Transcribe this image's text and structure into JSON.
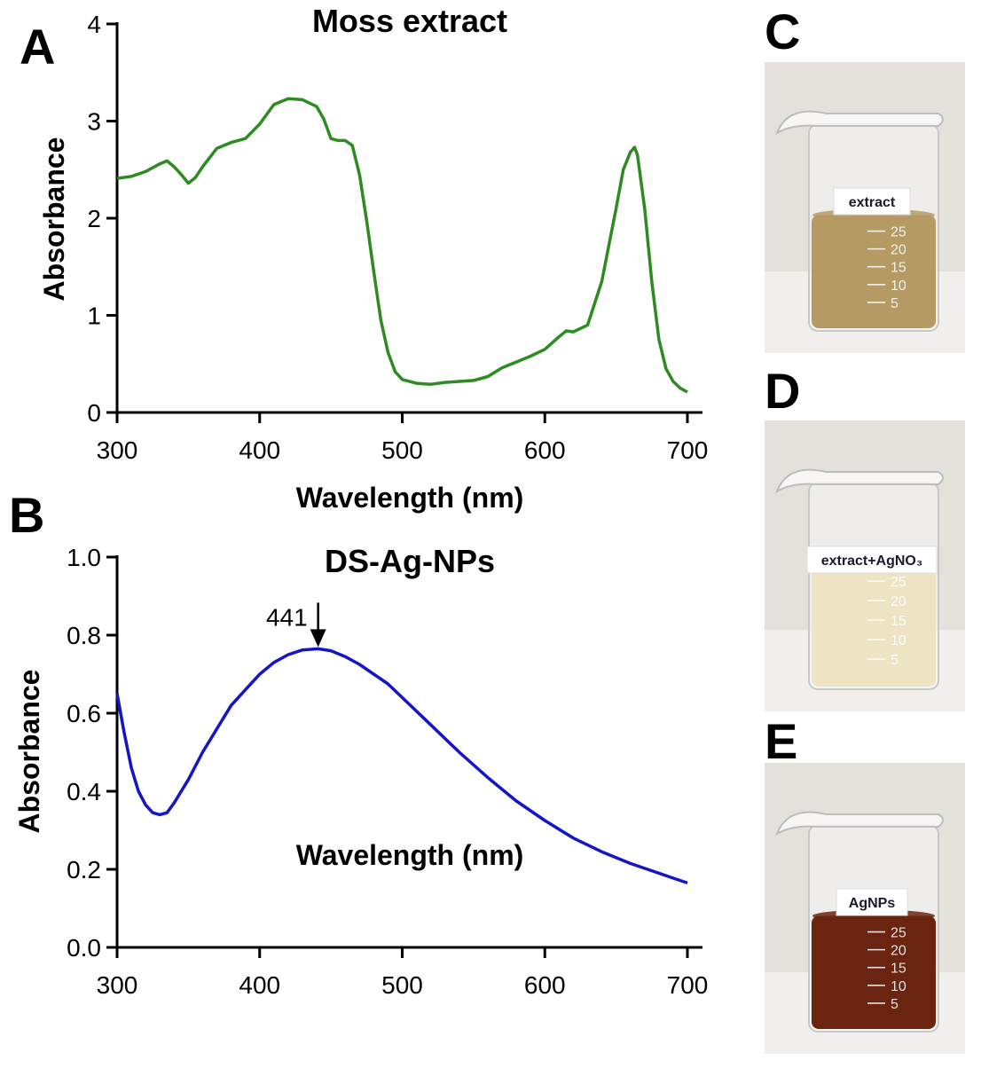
{
  "panels": {
    "a_letter": "A",
    "b_letter": "B",
    "c_letter": "C",
    "d_letter": "D",
    "e_letter": "E"
  },
  "photos": [
    {
      "label": "extract",
      "liquid_color": "#b59a63",
      "liquid_level": 0.56,
      "graduations": [
        "25",
        "20",
        "15",
        "10",
        "5"
      ]
    },
    {
      "label": "extract+AgNO₃",
      "liquid_color": "#eee3c2",
      "liquid_level": 0.6,
      "graduations": [
        "25",
        "20",
        "15",
        "10",
        "5"
      ]
    },
    {
      "label": "AgNPs",
      "liquid_color": "#6b2410",
      "liquid_level": 0.56,
      "graduations": [
        "25",
        "20",
        "15",
        "10",
        "5"
      ]
    }
  ],
  "chart_data": [
    {
      "id": "A",
      "type": "line",
      "title": "Moss extract",
      "xlabel": "Wavelength  (nm)",
      "ylabel": "Absorbance",
      "xlim": [
        300,
        700
      ],
      "ylim": [
        0,
        4
      ],
      "xticks": [
        "300",
        "400",
        "500",
        "600",
        "700"
      ],
      "yticks": [
        "0",
        "1",
        "2",
        "3",
        "4"
      ],
      "color": "#2e8b22",
      "x": [
        300,
        310,
        320,
        330,
        335,
        340,
        345,
        350,
        355,
        360,
        370,
        380,
        390,
        400,
        410,
        420,
        430,
        440,
        445,
        450,
        455,
        460,
        465,
        470,
        475,
        480,
        485,
        490,
        495,
        500,
        510,
        520,
        530,
        540,
        550,
        560,
        570,
        580,
        590,
        600,
        610,
        615,
        620,
        630,
        640,
        650,
        655,
        660,
        663,
        665,
        670,
        675,
        680,
        685,
        690,
        695,
        700
      ],
      "y": [
        2.41,
        2.43,
        2.48,
        2.56,
        2.59,
        2.53,
        2.45,
        2.36,
        2.42,
        2.53,
        2.72,
        2.78,
        2.82,
        2.97,
        3.17,
        3.23,
        3.22,
        3.15,
        3.02,
        2.82,
        2.8,
        2.8,
        2.75,
        2.45,
        1.98,
        1.45,
        0.95,
        0.62,
        0.42,
        0.34,
        0.3,
        0.29,
        0.31,
        0.32,
        0.33,
        0.37,
        0.46,
        0.52,
        0.58,
        0.65,
        0.78,
        0.84,
        0.83,
        0.9,
        1.35,
        2.1,
        2.5,
        2.68,
        2.73,
        2.65,
        2.1,
        1.35,
        0.75,
        0.45,
        0.32,
        0.25,
        0.21
      ]
    },
    {
      "id": "B",
      "type": "line",
      "title": "DS-Ag-NPs",
      "xlabel": "Wavelength  (nm)",
      "ylabel": "Absorbance",
      "xlim": [
        300,
        700
      ],
      "ylim": [
        0,
        1.0
      ],
      "xticks": [
        "300",
        "400",
        "500",
        "600",
        "700"
      ],
      "yticks": [
        "0.0",
        "0.2",
        "0.4",
        "0.6",
        "0.8",
        "1.0"
      ],
      "color": "#1414c8",
      "annotation": {
        "text": "441",
        "x": 441,
        "y": 0.765
      },
      "x": [
        300,
        305,
        310,
        315,
        320,
        325,
        330,
        335,
        340,
        350,
        360,
        370,
        380,
        390,
        400,
        410,
        420,
        430,
        441,
        450,
        460,
        470,
        480,
        490,
        500,
        520,
        540,
        560,
        580,
        600,
        620,
        640,
        660,
        680,
        700
      ],
      "y": [
        0.65,
        0.55,
        0.46,
        0.4,
        0.365,
        0.345,
        0.34,
        0.345,
        0.37,
        0.43,
        0.5,
        0.56,
        0.62,
        0.66,
        0.7,
        0.73,
        0.75,
        0.762,
        0.765,
        0.76,
        0.745,
        0.725,
        0.7,
        0.675,
        0.64,
        0.57,
        0.5,
        0.435,
        0.375,
        0.325,
        0.28,
        0.245,
        0.215,
        0.19,
        0.165
      ]
    }
  ]
}
